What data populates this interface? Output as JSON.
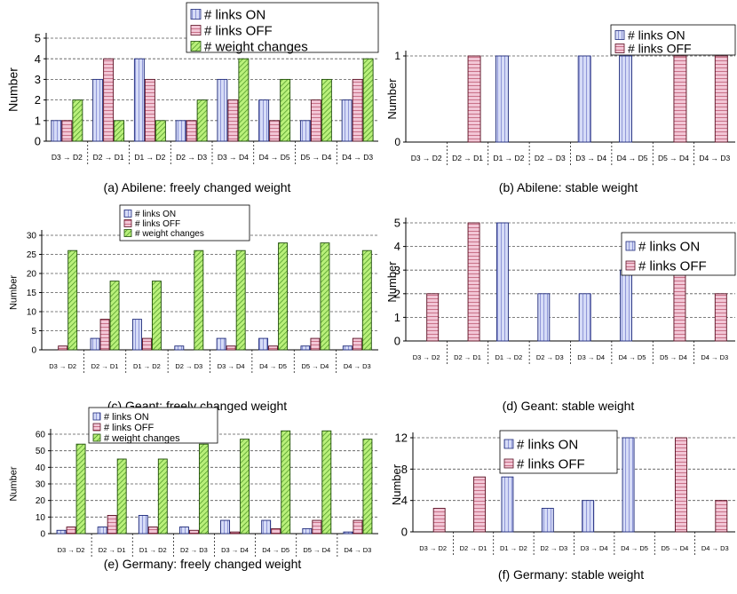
{
  "legend_labels": {
    "on": "# links ON",
    "off": "# links OFF",
    "weight": "# weight changes"
  },
  "colors": {
    "on_fill": "#d6dcf7",
    "on_stroke": "#6b72c8",
    "off_fill": "#f2c6d6",
    "off_stroke": "#b3435f",
    "weight_fill": "#b9f07a",
    "weight_stroke": "#3d8a1a"
  },
  "chart_data": [
    {
      "type": "bar",
      "caption": "(a) Abilene: freely changed weight",
      "ylabel": "Number",
      "ylim": [
        0,
        5
      ],
      "yticks": [
        0,
        1,
        2,
        3,
        4,
        5
      ],
      "grid": "dashed horizontal",
      "legend": "top-right",
      "categories": [
        "D3 → D2",
        "D2 → D1",
        "D1 → D2",
        "D2 → D3",
        "D3 → D4",
        "D4 → D5",
        "D5 → D4",
        "D4 → D3"
      ],
      "series": [
        {
          "name": "# links ON",
          "values": [
            1,
            3,
            4,
            1,
            3,
            2,
            1,
            2
          ]
        },
        {
          "name": "# links OFF",
          "values": [
            1,
            4,
            3,
            1,
            2,
            1,
            2,
            3
          ]
        },
        {
          "name": "# weight changes",
          "values": [
            2,
            1,
            1,
            2,
            4,
            3,
            3,
            4
          ]
        }
      ]
    },
    {
      "type": "bar",
      "caption": "(b) Abilene: stable weight",
      "ylabel": "Number",
      "ylim": [
        0,
        1
      ],
      "yticks": [
        0,
        1
      ],
      "grid": "dashed horizontal",
      "legend": "top-right",
      "categories": [
        "D3 → D2",
        "D2 → D1",
        "D1 → D2",
        "D2 → D3",
        "D3 → D4",
        "D4 → D5",
        "D5 → D4",
        "D4 → D3"
      ],
      "series": [
        {
          "name": "# links ON",
          "values": [
            0,
            0,
            1,
            0,
            1,
            1,
            0,
            0
          ]
        },
        {
          "name": "# links OFF",
          "values": [
            0,
            1,
            0,
            0,
            0,
            0,
            1,
            1
          ]
        }
      ]
    },
    {
      "type": "bar",
      "caption": "(c) Geant: freely changed weight",
      "ylabel": "Number",
      "ylim": [
        0,
        30
      ],
      "yticks": [
        0,
        5,
        10,
        15,
        20,
        25,
        30
      ],
      "grid": "dashed horizontal",
      "legend": "top-center",
      "categories": [
        "D3 → D2",
        "D2 → D1",
        "D1 → D2",
        "D2 → D3",
        "D3 → D4",
        "D4 → D5",
        "D5 → D4",
        "D4 → D3"
      ],
      "series": [
        {
          "name": "# links ON",
          "values": [
            0,
            3,
            8,
            1,
            3,
            3,
            1,
            1
          ]
        },
        {
          "name": "# links OFF",
          "values": [
            1,
            8,
            3,
            0,
            1,
            1,
            3,
            3
          ]
        },
        {
          "name": "# weight changes",
          "values": [
            26,
            18,
            18,
            26,
            26,
            28,
            28,
            26
          ]
        }
      ]
    },
    {
      "type": "bar",
      "caption": "(d) Geant: stable weight",
      "ylabel": "Number",
      "ylim": [
        0,
        5
      ],
      "yticks": [
        0,
        1,
        2,
        3,
        4,
        5
      ],
      "grid": "dashed horizontal",
      "legend": "top-right",
      "categories": [
        "D3 → D2",
        "D2 → D1",
        "D1 → D2",
        "D2 → D3",
        "D3 → D4",
        "D4 → D5",
        "D5 → D4",
        "D4 → D3"
      ],
      "series": [
        {
          "name": "# links ON",
          "values": [
            0,
            0,
            5,
            2,
            2,
            3,
            0,
            0
          ]
        },
        {
          "name": "# links OFF",
          "values": [
            2,
            5,
            0,
            0,
            0,
            0,
            3,
            2
          ]
        }
      ]
    },
    {
      "type": "bar",
      "caption": "(e) Germany: freely changed weight",
      "ylabel": "Number",
      "ylim": [
        0,
        60
      ],
      "yticks": [
        0,
        10,
        20,
        30,
        40,
        50,
        60
      ],
      "grid": "dashed horizontal",
      "legend": "top-left",
      "categories": [
        "D3 → D2",
        "D2 → D1",
        "D1 → D2",
        "D2 → D3",
        "D3 → D4",
        "D4 → D5",
        "D5 → D4",
        "D4 → D3"
      ],
      "series": [
        {
          "name": "# links ON",
          "values": [
            2,
            4,
            11,
            4,
            8,
            8,
            3,
            1
          ]
        },
        {
          "name": "# links OFF",
          "values": [
            4,
            11,
            4,
            2,
            1,
            3,
            8,
            8
          ]
        },
        {
          "name": "# weight changes",
          "values": [
            54,
            45,
            45,
            54,
            57,
            62,
            62,
            57
          ]
        }
      ]
    },
    {
      "type": "bar",
      "caption": "(f) Germany: stable weight",
      "ylabel": "Number",
      "ylim": [
        0,
        12
      ],
      "yticks": [
        0,
        4,
        8,
        12
      ],
      "grid": "dashed horizontal",
      "legend": "top-center",
      "categories": [
        "D3 → D2",
        "D2 → D1",
        "D1 → D2",
        "D2 → D3",
        "D3 → D4",
        "D4 → D5",
        "D5 → D4",
        "D4 → D3"
      ],
      "series": [
        {
          "name": "# links ON",
          "values": [
            0,
            0,
            7,
            3,
            4,
            12,
            0,
            0
          ]
        },
        {
          "name": "# links OFF",
          "values": [
            3,
            7,
            0,
            0,
            0,
            0,
            12,
            4
          ]
        }
      ]
    }
  ]
}
